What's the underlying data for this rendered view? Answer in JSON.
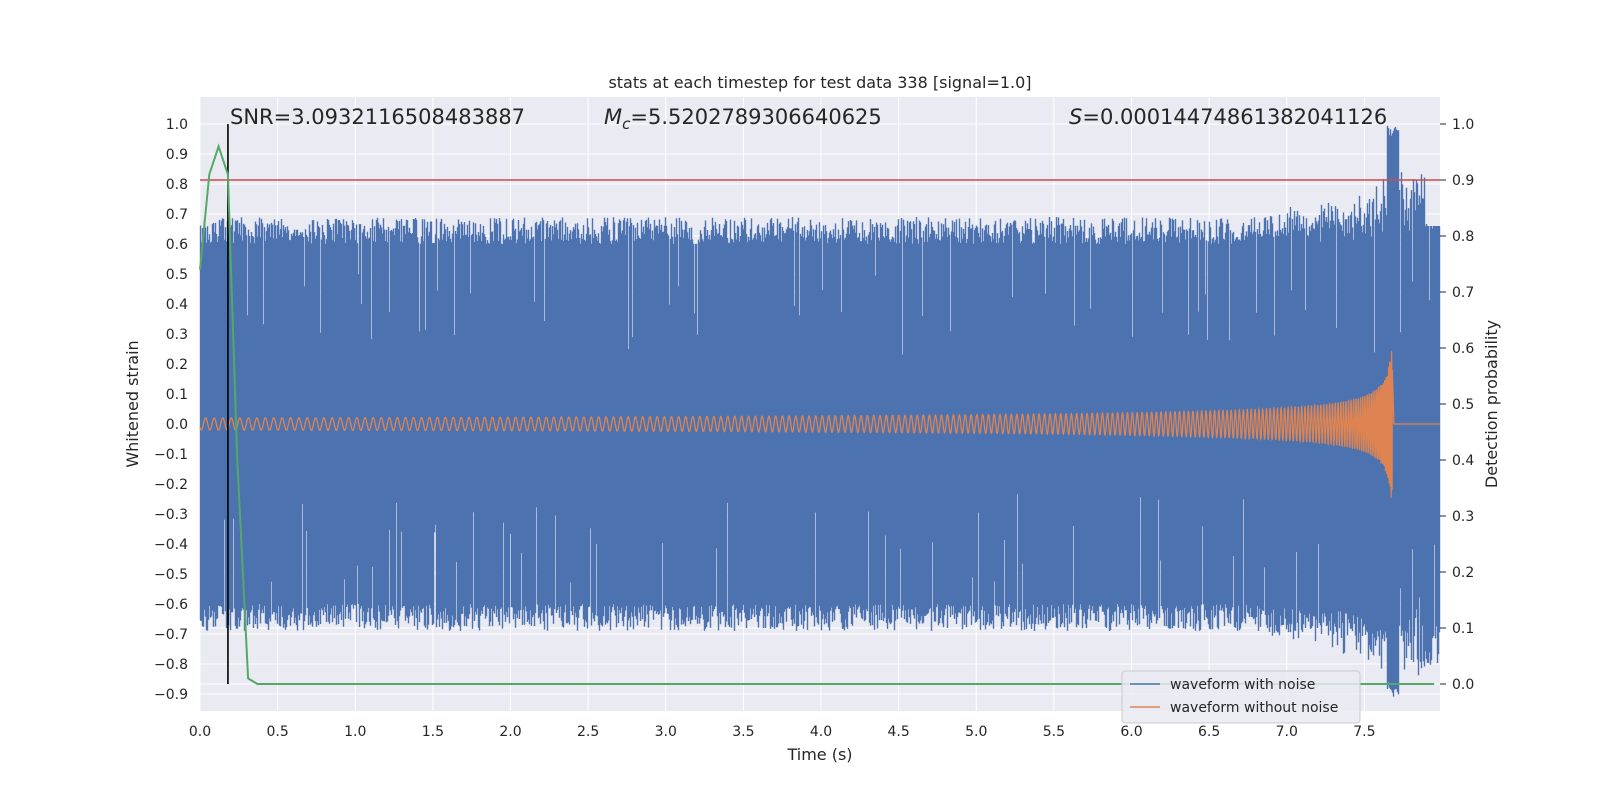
{
  "chart_data": {
    "type": "line",
    "title": "stats at each timestep for test data 338 [signal=1.0]",
    "xlabel": "Time (s)",
    "ylabel": "Whitened strain",
    "y2label": "Detection probability",
    "xlim": [
      0.0,
      8.0
    ],
    "ylim": [
      -0.95,
      1.03
    ],
    "y2lim": [
      -0.05,
      1.03
    ],
    "xticks": [
      "0.0",
      "0.5",
      "1.0",
      "1.5",
      "2.0",
      "2.5",
      "3.0",
      "3.5",
      "4.0",
      "4.5",
      "5.0",
      "5.5",
      "6.0",
      "6.5",
      "7.0",
      "7.5"
    ],
    "yticks": [
      "1.0",
      "0.9",
      "0.8",
      "0.7",
      "0.6",
      "0.5",
      "0.4",
      "0.3",
      "0.2",
      "0.1",
      "0.0",
      "−0.1",
      "−0.2",
      "−0.3",
      "−0.4",
      "−0.5",
      "−0.6",
      "−0.7",
      "−0.8",
      "−0.9"
    ],
    "y2ticks": [
      "1.0",
      "0.9",
      "0.8",
      "0.7",
      "0.6",
      "0.5",
      "0.4",
      "0.3",
      "0.2",
      "0.1",
      "0.0"
    ],
    "annotations": {
      "snr": "SNR=3.0932116508483887",
      "mc_symbol": "M",
      "mc_sub": "c",
      "mc_value": "=5.5202789306640625",
      "s_symbol": "S",
      "s_value": "=0.00014474861382041126"
    },
    "series": [
      {
        "name": "waveform with noise",
        "color": "#4c72b0",
        "axis": "left",
        "description_values": {
          "typical_upper": 0.63,
          "typical_lower": -0.63,
          "peak_upper": 1.0,
          "peak_lower": -0.91,
          "peak_time": 7.68
        }
      },
      {
        "name": "waveform without noise",
        "color": "#dd8452",
        "axis": "left",
        "description_values": {
          "start_amplitude": 0.02,
          "end_amplitude": 0.37,
          "merger_time": 7.68,
          "start_cycles_per_s": 18
        }
      },
      {
        "name": "detection probability",
        "color": "#55a868",
        "axis": "right",
        "x": [
          0.0,
          0.06,
          0.12,
          0.18,
          0.24,
          0.31,
          0.37,
          7.95
        ],
        "values": [
          0.74,
          0.91,
          0.96,
          0.91,
          0.4,
          0.01,
          0.0,
          0.0
        ]
      }
    ],
    "threshold": {
      "axis": "right",
      "value": 0.9,
      "color": "#c44e52"
    },
    "vline": {
      "x": 0.18,
      "color": "#000000"
    },
    "legend": {
      "position": "lower-right",
      "entries": [
        {
          "label": "waveform with noise",
          "color": "#4c72b0"
        },
        {
          "label": "waveform without noise",
          "color": "#dd8452"
        }
      ]
    },
    "grid": true,
    "background": "#eaeaf2"
  }
}
